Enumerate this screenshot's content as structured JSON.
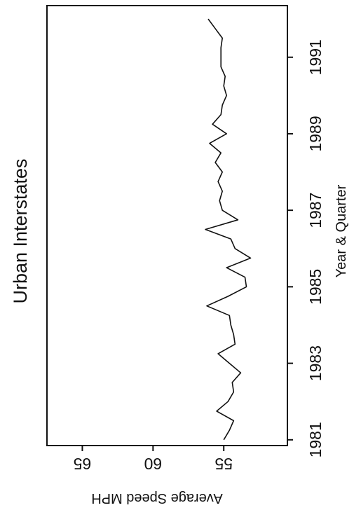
{
  "chart_data": {
    "type": "line",
    "title": "Urban Interstates",
    "xlabel": "Year & Quarter",
    "ylabel": "Average Speed MPH",
    "x_ticks": [
      {
        "value": 1981,
        "label": "1981"
      },
      {
        "value": 1983,
        "label": "1983"
      },
      {
        "value": 1985,
        "label": "1985"
      },
      {
        "value": 1987,
        "label": "1987"
      },
      {
        "value": 1989,
        "label": "1989"
      },
      {
        "value": 1991,
        "label": "1991"
      }
    ],
    "y_ticks": [
      {
        "value": 65,
        "label": "65"
      },
      {
        "value": 60,
        "label": "60"
      },
      {
        "value": 55,
        "label": "55"
      }
    ],
    "xlim": [
      1980.85,
      1992.35
    ],
    "ylim": [
      67.5,
      50.5
    ],
    "grid": false,
    "series": [
      {
        "x": [
          1981.0,
          1981.25,
          1981.5,
          1981.75,
          1982.0,
          1982.25,
          1982.5,
          1982.75,
          1983.0,
          1983.25,
          1983.5,
          1983.75,
          1984.0,
          1984.25,
          1984.5,
          1984.75,
          1985.0,
          1985.25,
          1985.5,
          1985.75,
          1986.0,
          1986.25,
          1986.5,
          1986.75,
          1987.0,
          1987.25,
          1987.5,
          1987.75,
          1988.0,
          1988.25,
          1988.5,
          1988.75,
          1989.0,
          1989.25,
          1989.5,
          1989.75,
          1990.0,
          1990.25,
          1990.5,
          1990.75,
          1991.0,
          1991.25,
          1991.5,
          1991.75,
          1992.0
        ],
        "y": [
          55.0,
          54.6,
          54.3,
          55.5,
          54.7,
          54.3,
          54.4,
          53.8,
          54.6,
          55.4,
          54.2,
          54.3,
          54.5,
          54.6,
          56.2,
          54.7,
          53.4,
          53.5,
          54.8,
          53.1,
          54.2,
          54.5,
          56.3,
          54.0,
          55.1,
          55.3,
          55.1,
          55.4,
          55.1,
          55.6,
          55.2,
          56.0,
          54.8,
          55.8,
          55.2,
          55.1,
          54.8,
          55.0,
          54.9,
          55.2,
          55.2,
          55.2,
          55.1,
          55.6,
          56.1
        ]
      }
    ]
  }
}
